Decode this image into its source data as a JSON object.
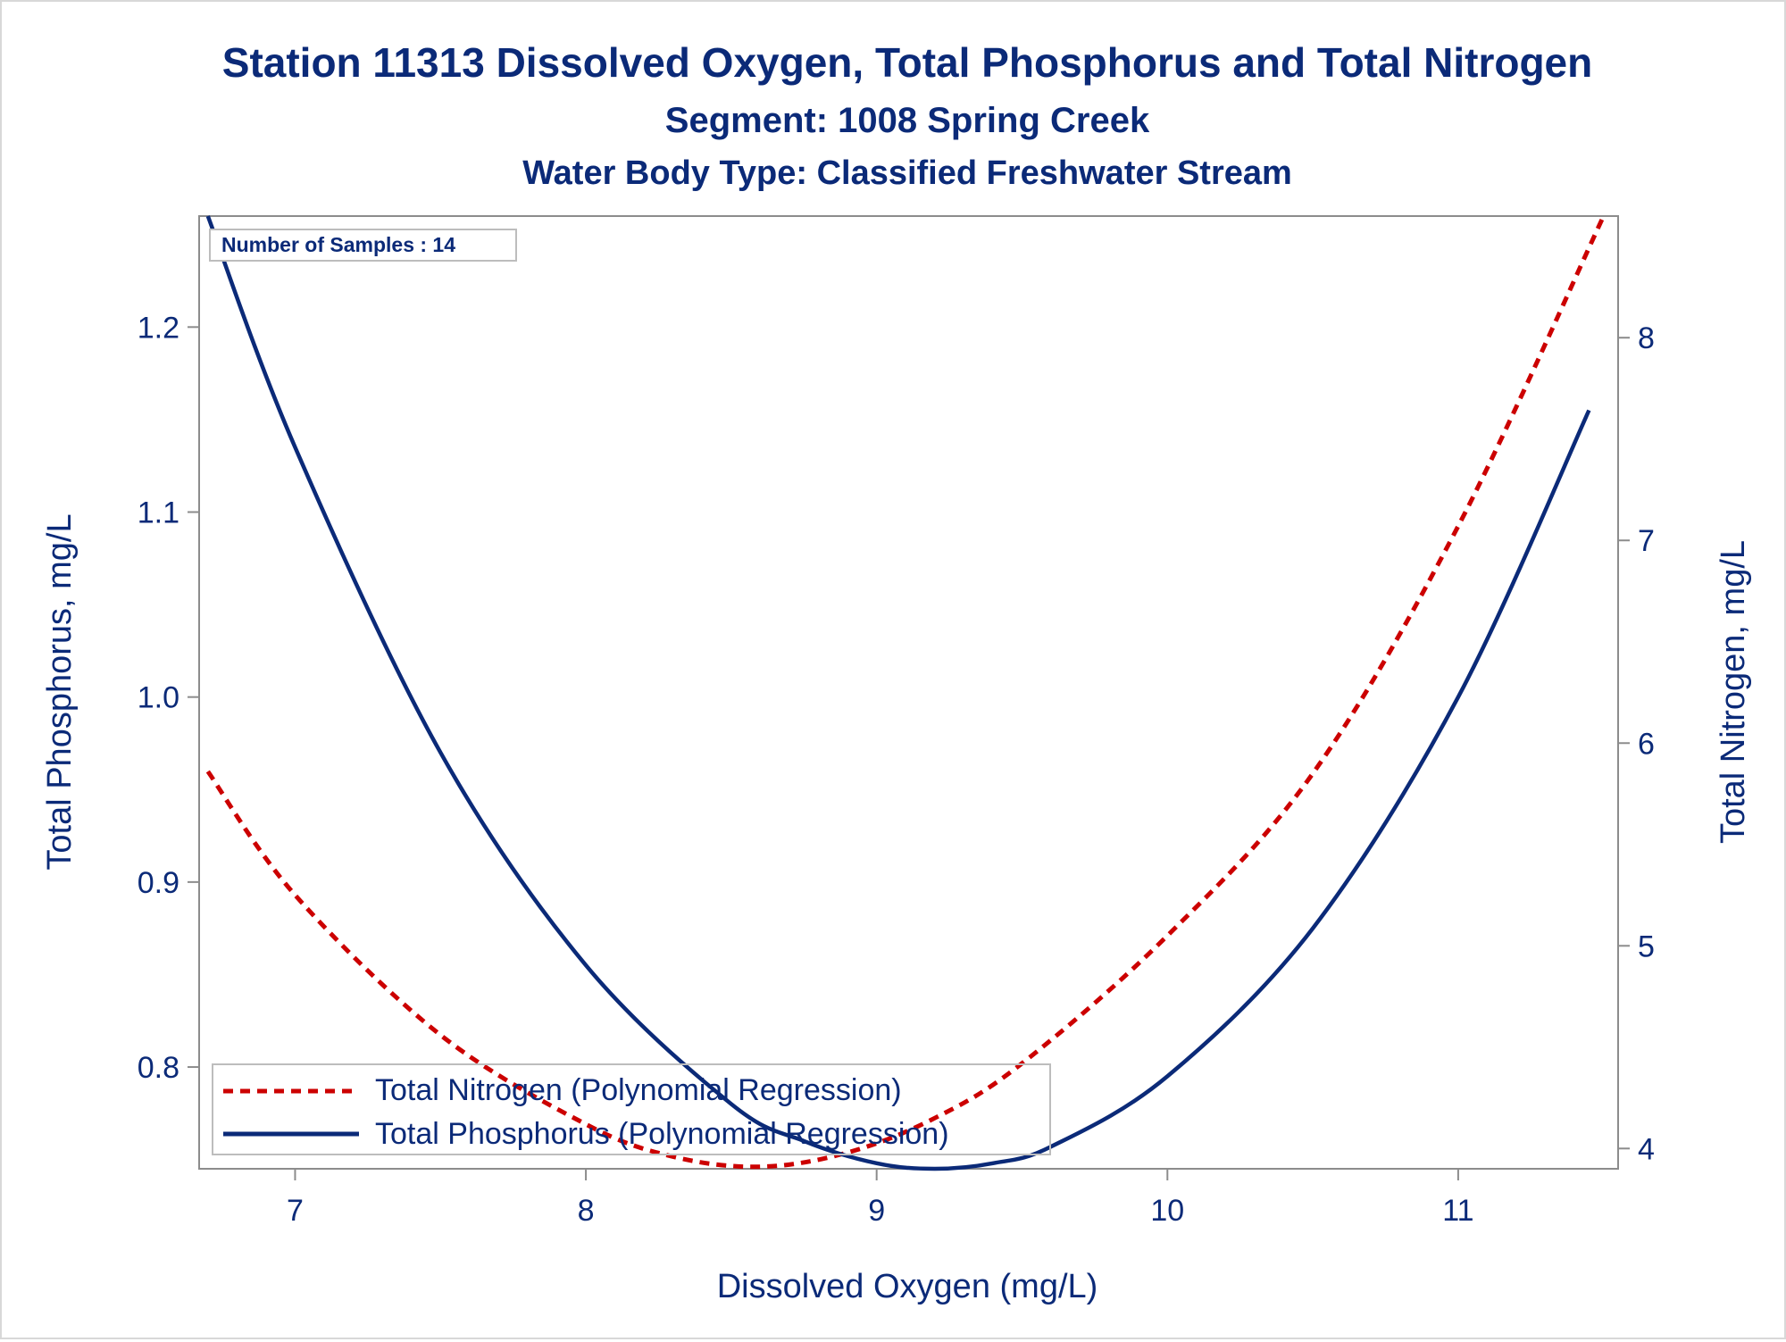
{
  "chart_data": {
    "type": "line",
    "title": "Station 11313  Dissolved Oxygen, Total Phosphorus and Total Nitrogen",
    "subtitle": "Segment: 1008  Spring Creek",
    "subtitle2": "Water Body Type: Classified Freshwater Stream",
    "xlabel": "Dissolved Oxygen (mg/L)",
    "ylabel_left": "Total Phosphorus, mg/L",
    "ylabel_right": "Total Nitrogen, mg/L",
    "annotation": "Number of Samples : 14",
    "xlim": [
      6.67,
      11.55
    ],
    "ylim_left": [
      0.745,
      1.26
    ],
    "ylim_right": [
      3.9,
      8.6
    ],
    "x_ticks": [
      "7",
      "8",
      "9",
      "10",
      "11"
    ],
    "y_left_ticks": [
      "0.8",
      "0.9",
      "1.0",
      "1.1",
      "1.2"
    ],
    "y_right_ticks": [
      "4",
      "5",
      "6",
      "7",
      "8"
    ],
    "grid": false,
    "legend_position": "bottom-left",
    "colors": {
      "text": "#0b2a78",
      "nitrogen": "#cc0000",
      "phosphorus": "#0b2a78",
      "frame": "#8c8c8c"
    },
    "series": [
      {
        "name": "Total Nitrogen (Polynomial Regression)",
        "axis": "right",
        "style": "dashed",
        "x": [
          6.7,
          7.0,
          7.5,
          8.0,
          8.3,
          8.6,
          8.9,
          9.2,
          9.5,
          10.0,
          10.5,
          11.0,
          11.5
        ],
        "y": [
          5.86,
          5.25,
          4.56,
          4.12,
          3.96,
          3.91,
          3.98,
          4.15,
          4.42,
          5.05,
          5.85,
          7.07,
          8.6
        ]
      },
      {
        "name": "Total Phosphorus (Polynomial Regression)",
        "axis": "left",
        "style": "solid",
        "x": [
          6.7,
          7.0,
          7.5,
          8.0,
          8.5,
          8.75,
          9.0,
          9.2,
          9.4,
          9.6,
          10.0,
          10.5,
          11.0,
          11.45
        ],
        "y": [
          1.26,
          1.135,
          0.97,
          0.855,
          0.78,
          0.76,
          0.748,
          0.745,
          0.748,
          0.757,
          0.795,
          0.875,
          1.0,
          1.155
        ]
      }
    ]
  }
}
